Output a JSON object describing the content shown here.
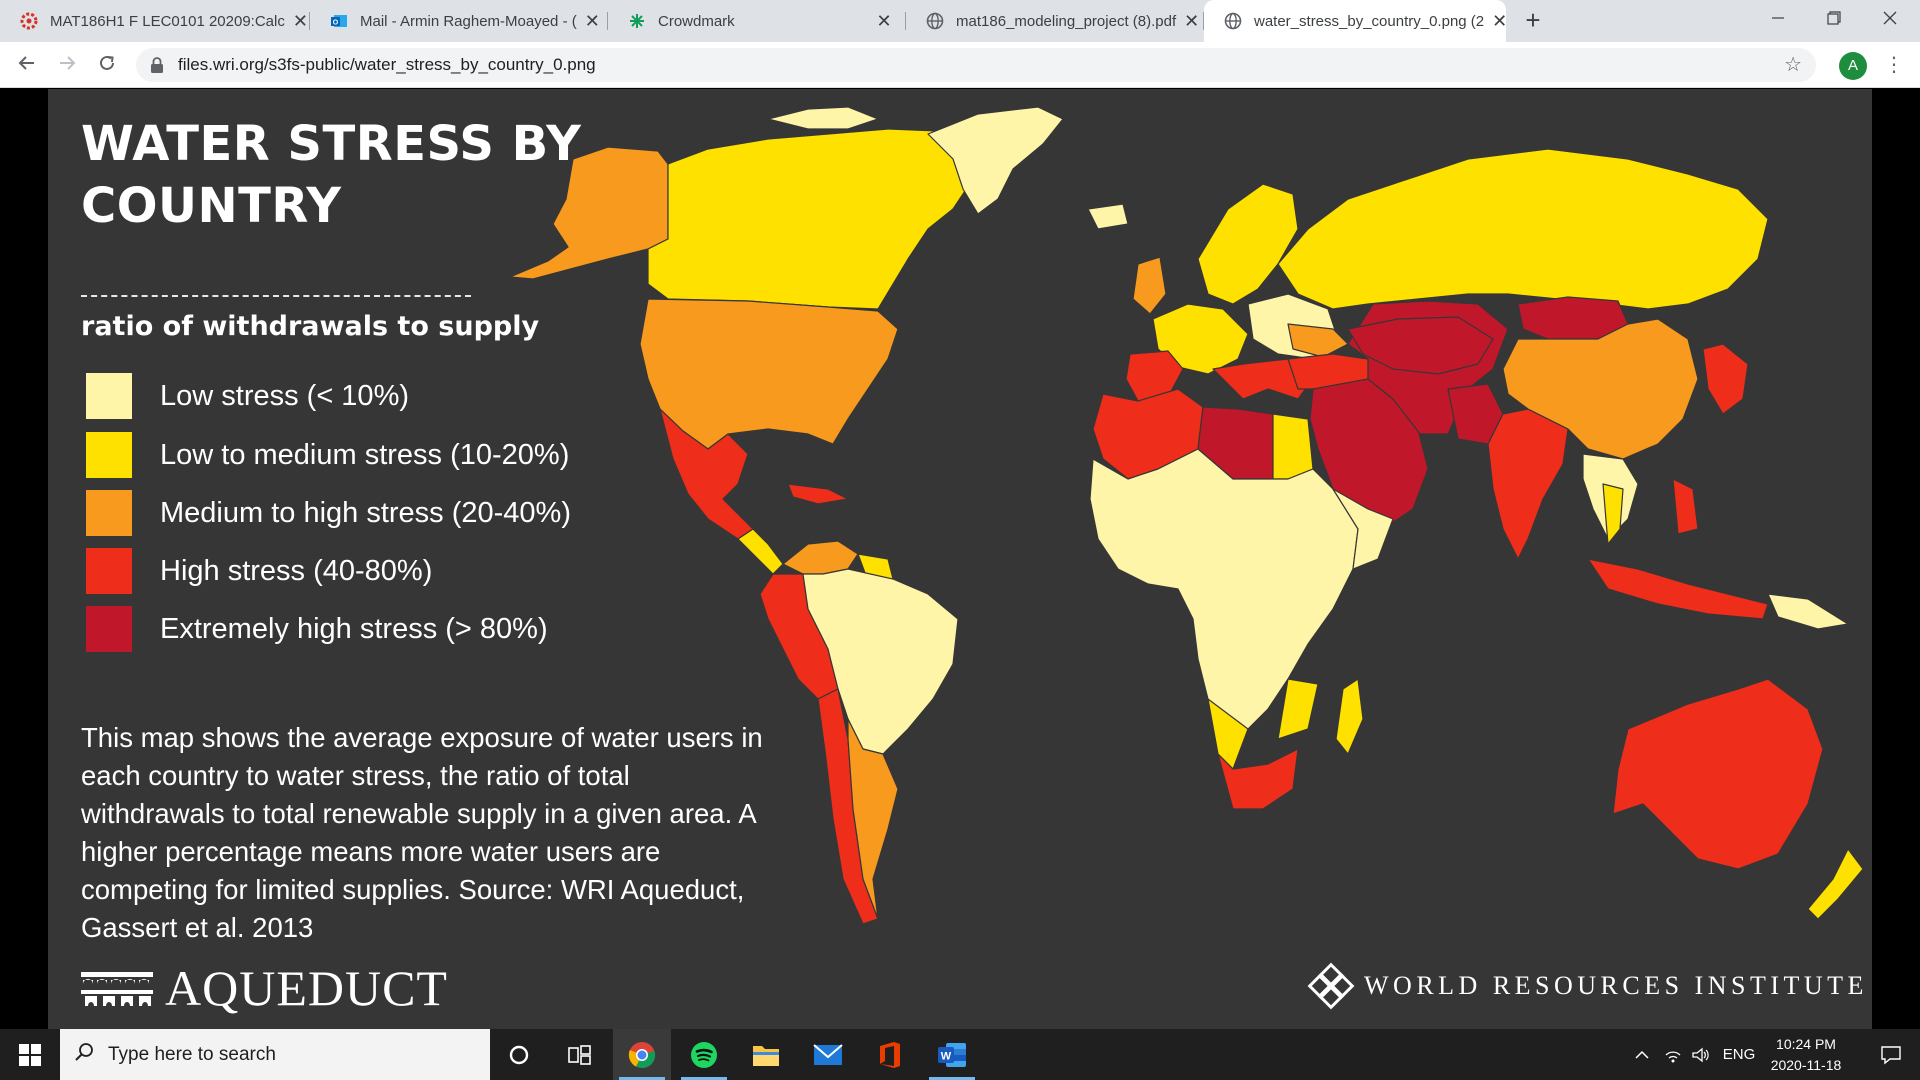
{
  "browser": {
    "tabs": [
      {
        "title": "MAT186H1 F LEC0101 20209:Calc",
        "favicon": "crowdmark-red-gear-icon",
        "active": false
      },
      {
        "title": "Mail - Armin Raghem-Moayed - (",
        "favicon": "outlook-icon",
        "active": false
      },
      {
        "title": "Crowdmark",
        "favicon": "crowdmark-icon",
        "active": false
      },
      {
        "title": "mat186_modeling_project (8).pdf",
        "favicon": "globe-icon",
        "active": false
      },
      {
        "title": "water_stress_by_country_0.png (2",
        "favicon": "globe-icon",
        "active": true
      }
    ],
    "new_tab_label": "+",
    "close_glyph": "✕",
    "url": "files.wri.org/s3fs-public/water_stress_by_country_0.png",
    "profile_initial": "A"
  },
  "poster": {
    "title_lines": [
      "WATER STRESS BY",
      "COUNTRY"
    ],
    "legend_title": "ratio of withdrawals to supply",
    "legend": [
      {
        "label": "Low stress (< 10%)",
        "color": "#fff5a8"
      },
      {
        "label": "Low to medium stress (10-20%)",
        "color": "#ffe100"
      },
      {
        "label": "Medium to high stress (20-40%)",
        "color": "#f79a1d"
      },
      {
        "label": "High stress (40-80%)",
        "color": "#ee2d1a"
      },
      {
        "label": "Extremely high stress (> 80%)",
        "color": "#c1172b"
      }
    ],
    "description": "This map shows the average exposure of water users in each country to water stress, the ratio of total withdrawals to total renewable supply in a given area. A higher percentage means more water users are competing for limited supplies. Source: WRI Aqueduct, Gassert et al. 2013",
    "aqueduct_logo_text": "AQUEDUCT",
    "wri_logo_text": "WORLD RESOURCES INSTITUTE",
    "background_color": "#363636"
  },
  "taskbar": {
    "search_placeholder": "Type here to search",
    "apps": [
      "cortana-icon",
      "task-view-icon",
      "chrome-icon",
      "spotify-icon",
      "file-explorer-icon",
      "mail-icon",
      "office-icon",
      "word-icon"
    ],
    "language": "ENG",
    "time": "10:24 PM",
    "date": "2020-11-18"
  }
}
